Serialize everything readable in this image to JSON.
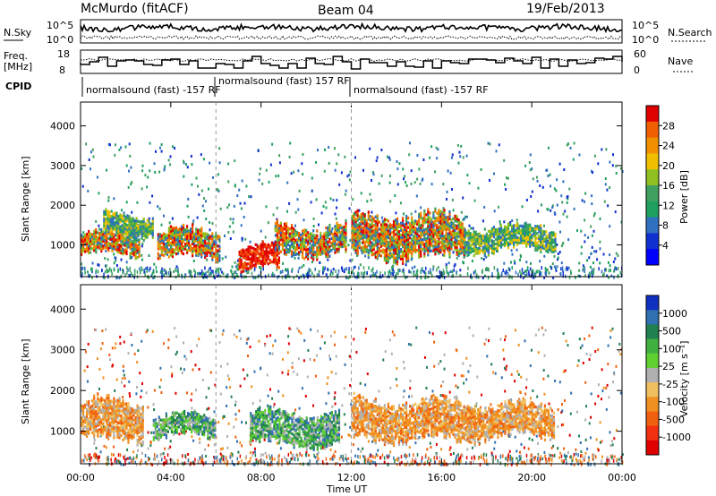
{
  "header": {
    "station": "McMurdo (fitACF)",
    "beam": "Beam 04",
    "date": "19/Feb/2013"
  },
  "panels": {
    "nsky_label": "N.Sky",
    "nsearch_label": "N.Search",
    "nsky_ticks": [
      "10^5",
      "10^0"
    ],
    "nsearch_ticks": [
      "10^5",
      "10^0"
    ],
    "freq_label_line1": "Freq.",
    "freq_label_line2": "[MHz]",
    "freq_ticks": [
      "18",
      "8"
    ],
    "nave_label": "Nave",
    "nave_ticks": [
      "60",
      "0"
    ],
    "cpid_label": "CPID",
    "cpid_segments": [
      {
        "text": "normalsound (fast) -157 RF"
      },
      {
        "text": "normalsound (fast) 157 RF"
      },
      {
        "text": "normalsound (fast) -157 RF"
      }
    ]
  },
  "axes": {
    "ylabel_top": "Slant Range [km]",
    "ylabel_bottom": "Slant Range [km]",
    "xlabel": "Time UT",
    "y_ticks": [
      "4000",
      "3000",
      "2000",
      "1000"
    ],
    "x_ticks": [
      "00:00",
      "04:00",
      "08:00",
      "12:00",
      "16:00",
      "20:00",
      "00:00"
    ]
  },
  "power_colorbar": {
    "label": "Power [dB]",
    "ticks": [
      "28",
      "24",
      "20",
      "16",
      "12",
      "8",
      "4"
    ],
    "colors": [
      "#e00000",
      "#f06000",
      "#f09000",
      "#f0c000",
      "#90c020",
      "#40a060",
      "#20a060",
      "#3070c0",
      "#1030d0",
      "#0000ff"
    ]
  },
  "velocity_colorbar": {
    "label": "Velocity [m s⁻¹]",
    "ticks": [
      "1000",
      "500",
      "100",
      "25",
      "-25",
      "-100",
      "-500",
      "-1000"
    ],
    "colors": [
      "#1030c0",
      "#3070b0",
      "#208050",
      "#40b040",
      "#60d030",
      "#b0b0b0",
      "#f0c060",
      "#f09020",
      "#f06010",
      "#f03010",
      "#e00000"
    ]
  },
  "chart_data": [
    {
      "type": "heatmap",
      "title": "Power",
      "xlabel": "Time UT",
      "ylabel": "Slant Range [km]",
      "xlim": [
        0,
        24
      ],
      "ylim": [
        200,
        4600
      ],
      "colorbar_range": [
        0,
        30
      ],
      "blobs": [
        {
          "t0": 0.0,
          "t1": 2.6,
          "r0": 700,
          "r1": 1300,
          "level": "high"
        },
        {
          "t0": 1.0,
          "t1": 3.2,
          "r0": 1200,
          "r1": 1800,
          "level": "mid"
        },
        {
          "t0": 3.4,
          "t1": 6.2,
          "r0": 600,
          "r1": 1400,
          "level": "high"
        },
        {
          "t0": 7.0,
          "t1": 8.8,
          "r0": 300,
          "r1": 1000,
          "level": "very-high"
        },
        {
          "t0": 8.6,
          "t1": 11.8,
          "r0": 700,
          "r1": 1500,
          "level": "high"
        },
        {
          "t0": 12.0,
          "t1": 17.0,
          "r0": 600,
          "r1": 1800,
          "level": "mid-high"
        },
        {
          "t0": 17.0,
          "t1": 21.0,
          "r0": 800,
          "r1": 1500,
          "level": "mid"
        }
      ]
    },
    {
      "type": "heatmap",
      "title": "Velocity",
      "xlabel": "Time UT",
      "ylabel": "Slant Range [km]",
      "xlim": [
        0,
        24
      ],
      "ylim": [
        200,
        4600
      ],
      "colorbar_range": [
        -1000,
        1000
      ],
      "blobs": [
        {
          "t0": 0.0,
          "t1": 2.8,
          "r0": 700,
          "r1": 1800,
          "level": "-100"
        },
        {
          "t0": 3.2,
          "t1": 6.0,
          "r0": 800,
          "r1": 1400,
          "level": "100"
        },
        {
          "t0": 7.5,
          "t1": 11.5,
          "r0": 600,
          "r1": 1500,
          "level": "100"
        },
        {
          "t0": 12.0,
          "t1": 17.5,
          "r0": 700,
          "r1": 1800,
          "level": "-100"
        },
        {
          "t0": 17.5,
          "t1": 21.0,
          "r0": 800,
          "r1": 1700,
          "level": "-100"
        }
      ]
    }
  ]
}
